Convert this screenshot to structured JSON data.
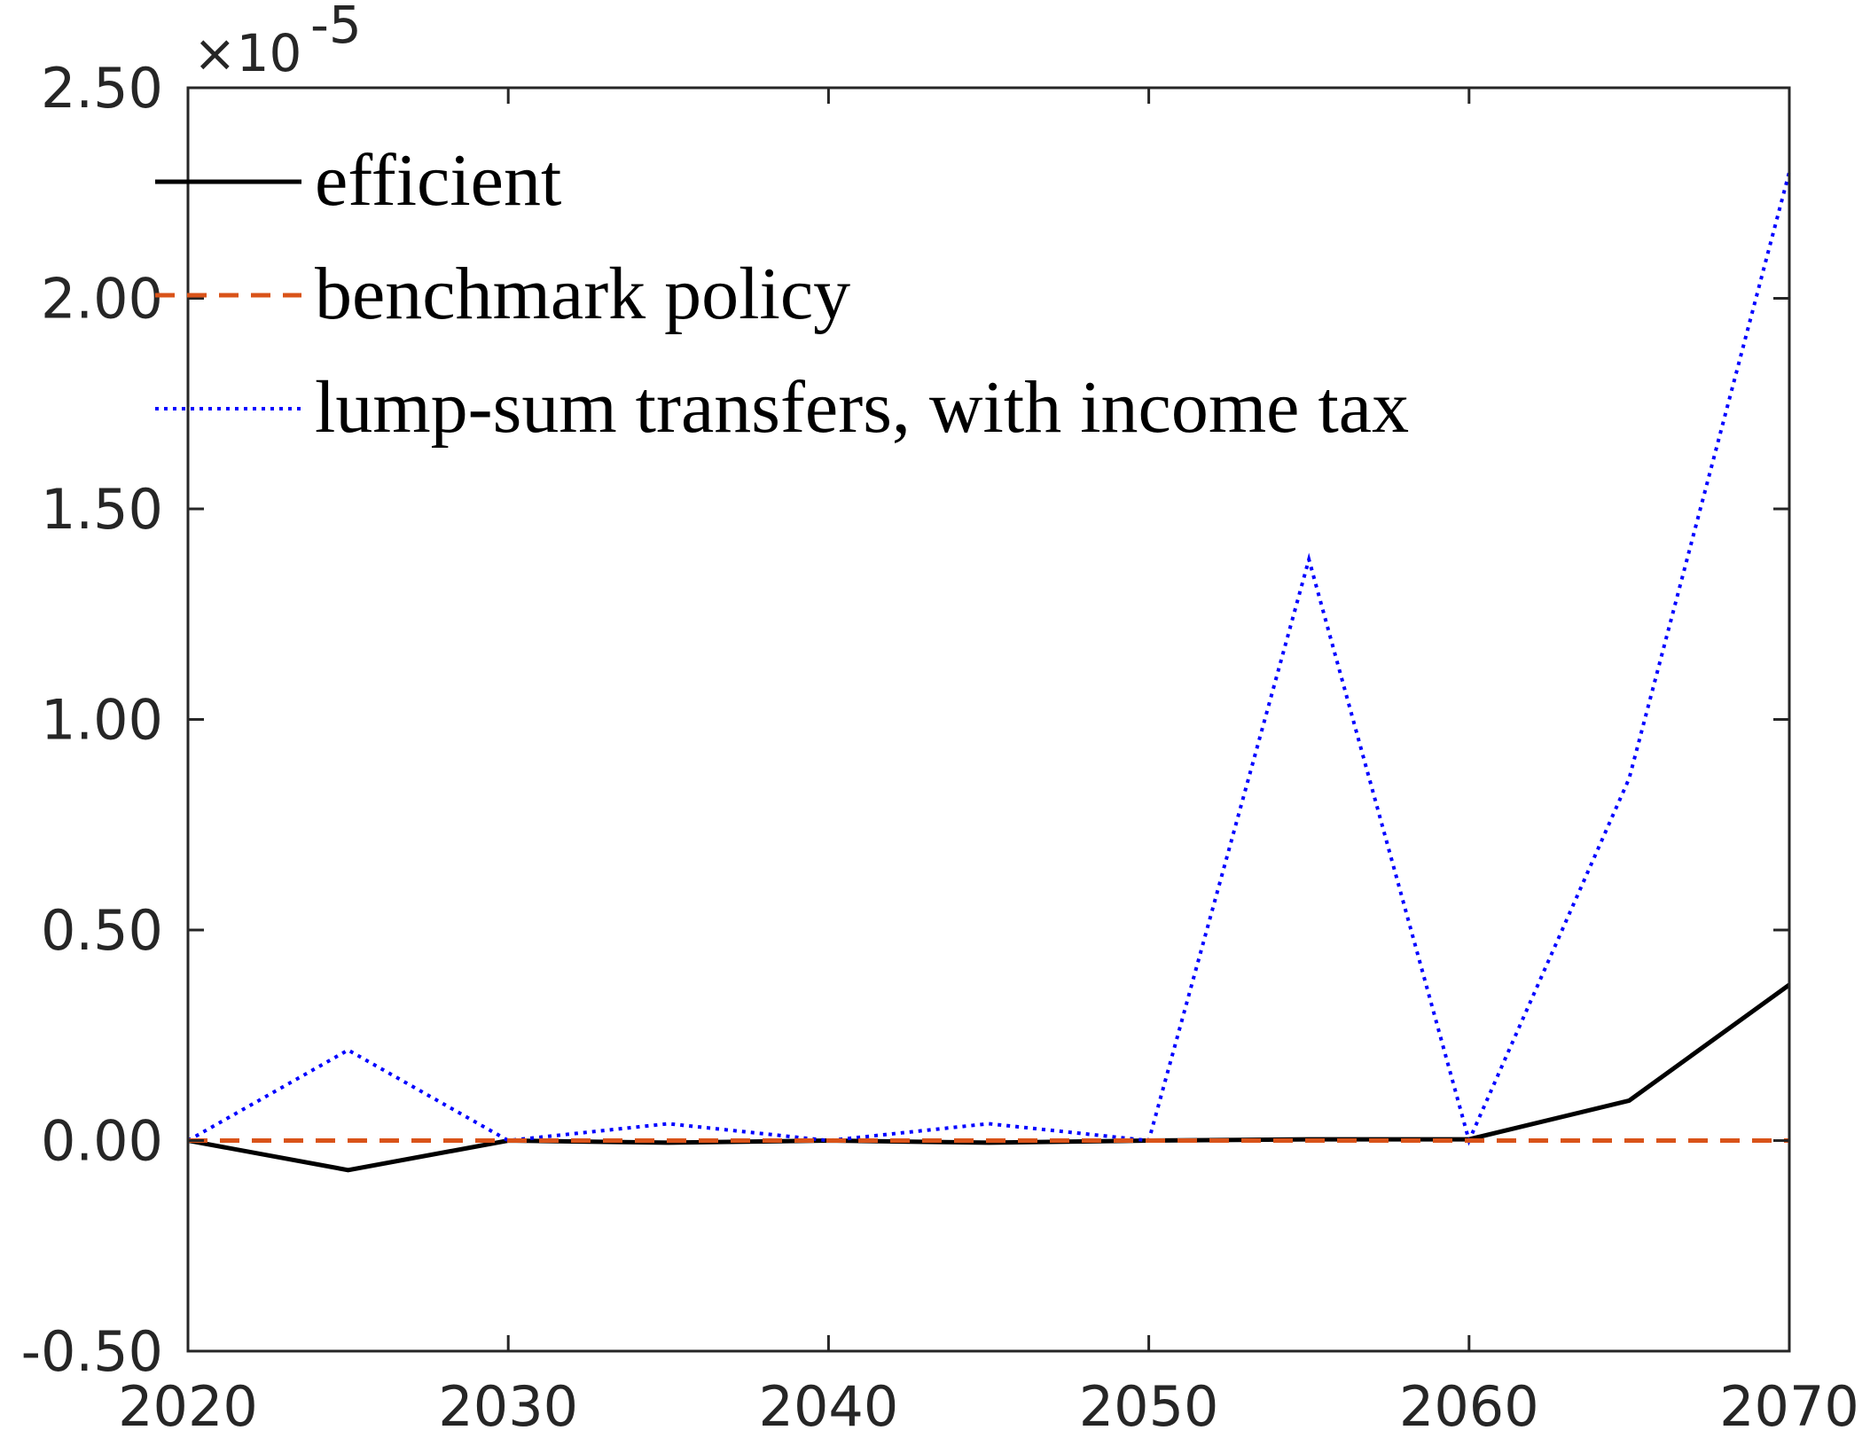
{
  "chart_data": {
    "type": "line",
    "x": [
      2020,
      2025,
      2030,
      2035,
      2040,
      2045,
      2050,
      2055,
      2060,
      2065,
      2070
    ],
    "xlim": [
      2020,
      2070
    ],
    "ylim": [
      -0.5,
      2.5
    ],
    "y_exponent_label": "×10",
    "y_exponent_power": "-5",
    "x_ticks": [
      2020,
      2030,
      2040,
      2050,
      2060,
      2070
    ],
    "x_tick_labels": [
      "2020",
      "2030",
      "2040",
      "2050",
      "2060",
      "2070"
    ],
    "y_ticks": [
      -0.5,
      0,
      0.5,
      1,
      1.5,
      2,
      2.5
    ],
    "y_tick_labels": [
      "-0.50",
      "0.00",
      "0.50",
      "1.00",
      "1.50",
      "2.00",
      "2.50"
    ],
    "grid": false,
    "legend_position": "top-left",
    "series": [
      {
        "name": "efficient",
        "color": "#000000",
        "style": "solid",
        "values": [
          0,
          -0.07,
          0,
          -0.005,
          0,
          -0.005,
          0,
          0.003,
          0.003,
          0.095,
          0.37
        ]
      },
      {
        "name": "benchmark policy",
        "color": "#D95319",
        "style": "dashed",
        "values": [
          0,
          0,
          0,
          0,
          0,
          0,
          0,
          0,
          0,
          0,
          0
        ]
      },
      {
        "name": "lump-sum transfers, with income tax",
        "color": "#0000FF",
        "style": "dotted",
        "values": [
          0,
          0.215,
          0,
          0.04,
          0,
          0.04,
          0,
          1.38,
          0,
          0.86,
          2.3
        ]
      }
    ]
  }
}
